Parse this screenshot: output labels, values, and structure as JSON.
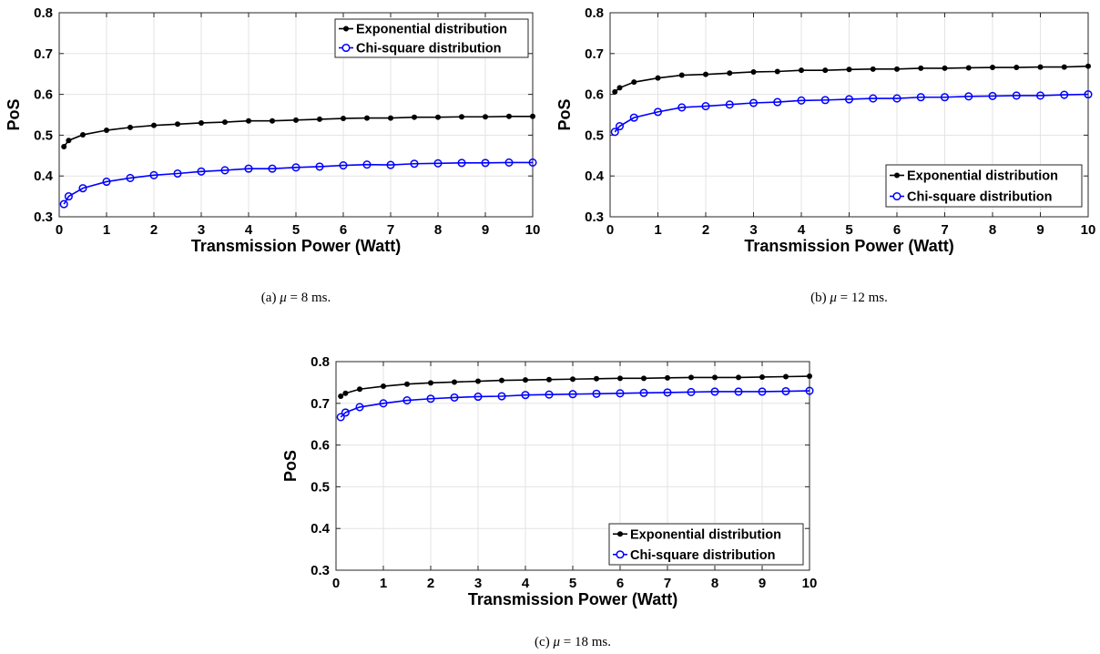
{
  "chart_data": [
    {
      "type": "line",
      "xlabel": "Transmission Power (Watt)",
      "ylabel": "PoS",
      "xlim": [
        0,
        10
      ],
      "ylim": [
        0.3,
        0.8
      ],
      "xticks": [
        "0",
        "1",
        "2",
        "3",
        "4",
        "5",
        "6",
        "7",
        "8",
        "9",
        "10"
      ],
      "yticks": [
        "0.3",
        "0.4",
        "0.5",
        "0.6",
        "0.7",
        "0.8"
      ],
      "grid": true,
      "legend_position": "top-right",
      "caption": {
        "prefix": "(a) ",
        "symbol": "μ",
        "suffix": " = 8 ms."
      },
      "x": [
        0.1,
        0.2,
        0.5,
        1,
        1.5,
        2,
        2.5,
        3,
        3.5,
        4,
        4.5,
        5,
        5.5,
        6,
        6.5,
        7,
        7.5,
        8,
        8.5,
        9,
        9.5,
        10
      ],
      "series": [
        {
          "name": "Exponential distribution",
          "color": "#000000",
          "marker": "dot",
          "values": [
            0.472,
            0.487,
            0.501,
            0.512,
            0.519,
            0.524,
            0.527,
            0.53,
            0.532,
            0.535,
            0.535,
            0.537,
            0.539,
            0.541,
            0.542,
            0.542,
            0.544,
            0.544,
            0.545,
            0.545,
            0.546,
            0.546
          ]
        },
        {
          "name": "Chi-square distribution",
          "color": "#0000ff",
          "marker": "circle",
          "values": [
            0.331,
            0.35,
            0.37,
            0.386,
            0.395,
            0.402,
            0.406,
            0.411,
            0.414,
            0.418,
            0.418,
            0.421,
            0.423,
            0.426,
            0.428,
            0.427,
            0.43,
            0.431,
            0.432,
            0.432,
            0.433,
            0.433
          ]
        }
      ]
    },
    {
      "type": "line",
      "xlabel": "Transmission Power (Watt)",
      "ylabel": "PoS",
      "xlim": [
        0,
        10
      ],
      "ylim": [
        0.3,
        0.8
      ],
      "xticks": [
        "0",
        "1",
        "2",
        "3",
        "4",
        "5",
        "6",
        "7",
        "8",
        "9",
        "10"
      ],
      "yticks": [
        "0.3",
        "0.4",
        "0.5",
        "0.6",
        "0.7",
        "0.8"
      ],
      "grid": true,
      "legend_position": "bottom-right",
      "caption": {
        "prefix": "(b) ",
        "symbol": "μ",
        "suffix": " = 12 ms."
      },
      "x": [
        0.1,
        0.2,
        0.5,
        1,
        1.5,
        2,
        2.5,
        3,
        3.5,
        4,
        4.5,
        5,
        5.5,
        6,
        6.5,
        7,
        7.5,
        8,
        8.5,
        9,
        9.5,
        10
      ],
      "series": [
        {
          "name": "Exponential distribution",
          "color": "#000000",
          "marker": "dot",
          "values": [
            0.606,
            0.616,
            0.63,
            0.64,
            0.647,
            0.649,
            0.652,
            0.655,
            0.656,
            0.659,
            0.659,
            0.661,
            0.662,
            0.662,
            0.664,
            0.664,
            0.665,
            0.666,
            0.666,
            0.667,
            0.667,
            0.669
          ]
        },
        {
          "name": "Chi-square distribution",
          "color": "#0000ff",
          "marker": "circle",
          "values": [
            0.508,
            0.522,
            0.543,
            0.557,
            0.568,
            0.571,
            0.575,
            0.579,
            0.581,
            0.585,
            0.586,
            0.588,
            0.59,
            0.59,
            0.593,
            0.593,
            0.595,
            0.596,
            0.597,
            0.597,
            0.599,
            0.6
          ]
        }
      ]
    },
    {
      "type": "line",
      "xlabel": "Transmission Power (Watt)",
      "ylabel": "PoS",
      "xlim": [
        0,
        10
      ],
      "ylim": [
        0.3,
        0.8
      ],
      "xticks": [
        "0",
        "1",
        "2",
        "3",
        "4",
        "5",
        "6",
        "7",
        "8",
        "9",
        "10"
      ],
      "yticks": [
        "0.3",
        "0.4",
        "0.5",
        "0.6",
        "0.7",
        "0.8"
      ],
      "grid": true,
      "legend_position": "bottom-right",
      "caption": {
        "prefix": "(c) ",
        "symbol": "μ",
        "suffix": " = 18 ms."
      },
      "x": [
        0.1,
        0.2,
        0.5,
        1,
        1.5,
        2,
        2.5,
        3,
        3.5,
        4,
        4.5,
        5,
        5.5,
        6,
        6.5,
        7,
        7.5,
        8,
        8.5,
        9,
        9.5,
        10
      ],
      "series": [
        {
          "name": "Exponential distribution",
          "color": "#000000",
          "marker": "dot",
          "values": [
            0.717,
            0.724,
            0.734,
            0.741,
            0.746,
            0.749,
            0.751,
            0.753,
            0.755,
            0.756,
            0.757,
            0.758,
            0.759,
            0.76,
            0.76,
            0.761,
            0.762,
            0.762,
            0.762,
            0.763,
            0.764,
            0.765
          ]
        },
        {
          "name": "Chi-square distribution",
          "color": "#0000ff",
          "marker": "circle",
          "values": [
            0.667,
            0.678,
            0.691,
            0.7,
            0.707,
            0.711,
            0.714,
            0.716,
            0.717,
            0.72,
            0.721,
            0.722,
            0.723,
            0.724,
            0.725,
            0.726,
            0.727,
            0.728,
            0.728,
            0.728,
            0.729,
            0.73
          ]
        }
      ]
    }
  ]
}
